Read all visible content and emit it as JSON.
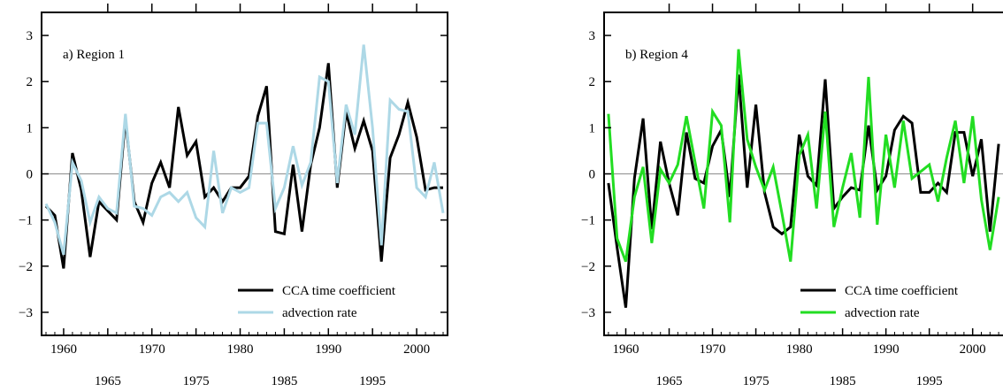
{
  "chart_data": [
    {
      "type": "line",
      "title": "a) Region 1",
      "xlim": [
        1957.5,
        2003.5
      ],
      "ylim": [
        -3.5,
        3.5
      ],
      "yticks": [
        -3,
        -2,
        -1,
        0,
        1,
        2,
        3
      ],
      "yticklabels": [
        "−3",
        "−2",
        "−1",
        "0",
        "1",
        "2",
        "3"
      ],
      "xticks_bottom_row1": [
        1960,
        1970,
        1980,
        1990,
        2000
      ],
      "xticks_bottom_row2": [
        1965,
        1975,
        1985,
        1995
      ],
      "xticks_top": [
        1965,
        1970,
        1975,
        1980,
        1985,
        1990,
        1995,
        2000
      ],
      "grid": false,
      "zero_line": true,
      "legend_position": "lower-right",
      "x": [
        1958,
        1959,
        1960,
        1961,
        1962,
        1963,
        1964,
        1965,
        1966,
        1967,
        1968,
        1969,
        1970,
        1971,
        1972,
        1973,
        1974,
        1975,
        1976,
        1977,
        1978,
        1979,
        1980,
        1981,
        1982,
        1983,
        1984,
        1985,
        1986,
        1987,
        1988,
        1989,
        1990,
        1991,
        1992,
        1993,
        1994,
        1995,
        1996,
        1997,
        1998,
        1999,
        2000,
        2001,
        2002,
        2003
      ],
      "series": [
        {
          "name": "CCA time coefficient",
          "color": "#000000",
          "values": [
            -0.7,
            -0.9,
            -2.05,
            0.45,
            -0.35,
            -1.8,
            -0.6,
            -0.8,
            -1.0,
            1.2,
            -0.6,
            -1.05,
            -0.2,
            0.25,
            -0.3,
            1.45,
            0.4,
            0.7,
            -0.5,
            -0.3,
            -0.6,
            -0.3,
            -0.3,
            -0.05,
            1.25,
            1.9,
            -1.25,
            -1.3,
            0.2,
            -1.25,
            0.2,
            1.0,
            2.4,
            -0.3,
            1.35,
            0.55,
            1.15,
            0.5,
            -1.9,
            0.35,
            0.85,
            1.55,
            0.8,
            -0.35,
            -0.3,
            -0.3
          ]
        },
        {
          "name": "advection rate",
          "color": "#add8e6",
          "values": [
            -0.65,
            -1.05,
            -1.75,
            0.25,
            -0.15,
            -1.05,
            -0.5,
            -0.75,
            -0.85,
            1.3,
            -0.7,
            -0.75,
            -0.9,
            -0.5,
            -0.4,
            -0.6,
            -0.4,
            -0.95,
            -1.15,
            0.5,
            -0.85,
            -0.3,
            -0.4,
            -0.3,
            1.1,
            1.1,
            -0.75,
            -0.3,
            0.6,
            -0.25,
            0.25,
            2.1,
            2.0,
            -0.2,
            1.5,
            0.85,
            2.8,
            1.0,
            -1.55,
            1.6,
            1.4,
            1.35,
            -0.3,
            -0.5,
            0.25,
            -0.85
          ]
        }
      ]
    },
    {
      "type": "line",
      "title": "b) Region 4",
      "xlim": [
        1957.5,
        2003.5
      ],
      "ylim": [
        -3.5,
        3.5
      ],
      "yticks": [
        -3,
        -2,
        -1,
        0,
        1,
        2,
        3
      ],
      "yticklabels": [
        "−3",
        "−2",
        "−1",
        "0",
        "1",
        "2",
        "3"
      ],
      "xticks_bottom_row1": [
        1960,
        1970,
        1980,
        1990,
        2000
      ],
      "xticks_bottom_row2": [
        1965,
        1975,
        1985,
        1995
      ],
      "xticks_top": [
        1965,
        1970,
        1975,
        1980,
        1985,
        1990,
        1995,
        2000
      ],
      "grid": false,
      "zero_line": true,
      "legend_position": "lower-right",
      "x": [
        1958,
        1959,
        1960,
        1961,
        1962,
        1963,
        1964,
        1965,
        1966,
        1967,
        1968,
        1969,
        1970,
        1971,
        1972,
        1973,
        1974,
        1975,
        1976,
        1977,
        1978,
        1979,
        1980,
        1981,
        1982,
        1983,
        1984,
        1985,
        1986,
        1987,
        1988,
        1989,
        1990,
        1991,
        1992,
        1993,
        1994,
        1995,
        1996,
        1997,
        1998,
        1999,
        2000,
        2001,
        2002,
        2003
      ],
      "series": [
        {
          "name": "CCA time coefficient",
          "color": "#000000",
          "values": [
            -0.2,
            -1.6,
            -2.9,
            -0.1,
            1.2,
            -1.2,
            0.7,
            -0.2,
            -0.9,
            0.9,
            -0.1,
            -0.2,
            0.6,
            0.95,
            -0.5,
            2.15,
            -0.3,
            1.5,
            -0.4,
            -1.15,
            -1.3,
            -1.15,
            0.85,
            -0.05,
            -0.25,
            2.05,
            -0.75,
            -0.5,
            -0.3,
            -0.35,
            1.05,
            -0.35,
            -0.05,
            0.95,
            1.25,
            1.1,
            -0.4,
            -0.4,
            -0.2,
            -0.4,
            0.9,
            0.9,
            -0.05,
            0.75,
            -1.25,
            0.65
          ]
        },
        {
          "name": "advection rate",
          "color": "#22dd22",
          "values": [
            1.3,
            -1.4,
            -1.9,
            -0.5,
            0.15,
            -1.5,
            0.1,
            -0.2,
            0.2,
            1.25,
            0.25,
            -0.75,
            1.35,
            1.05,
            -1.05,
            2.7,
            0.75,
            0.15,
            -0.35,
            0.15,
            -0.85,
            -1.9,
            0.4,
            0.85,
            -0.75,
            1.35,
            -1.15,
            -0.3,
            0.45,
            -0.95,
            2.1,
            -1.1,
            0.85,
            -0.3,
            1.15,
            -0.1,
            0.05,
            0.2,
            -0.6,
            0.35,
            1.15,
            -0.2,
            1.25,
            -0.55,
            -1.65,
            -0.5
          ]
        }
      ]
    }
  ]
}
